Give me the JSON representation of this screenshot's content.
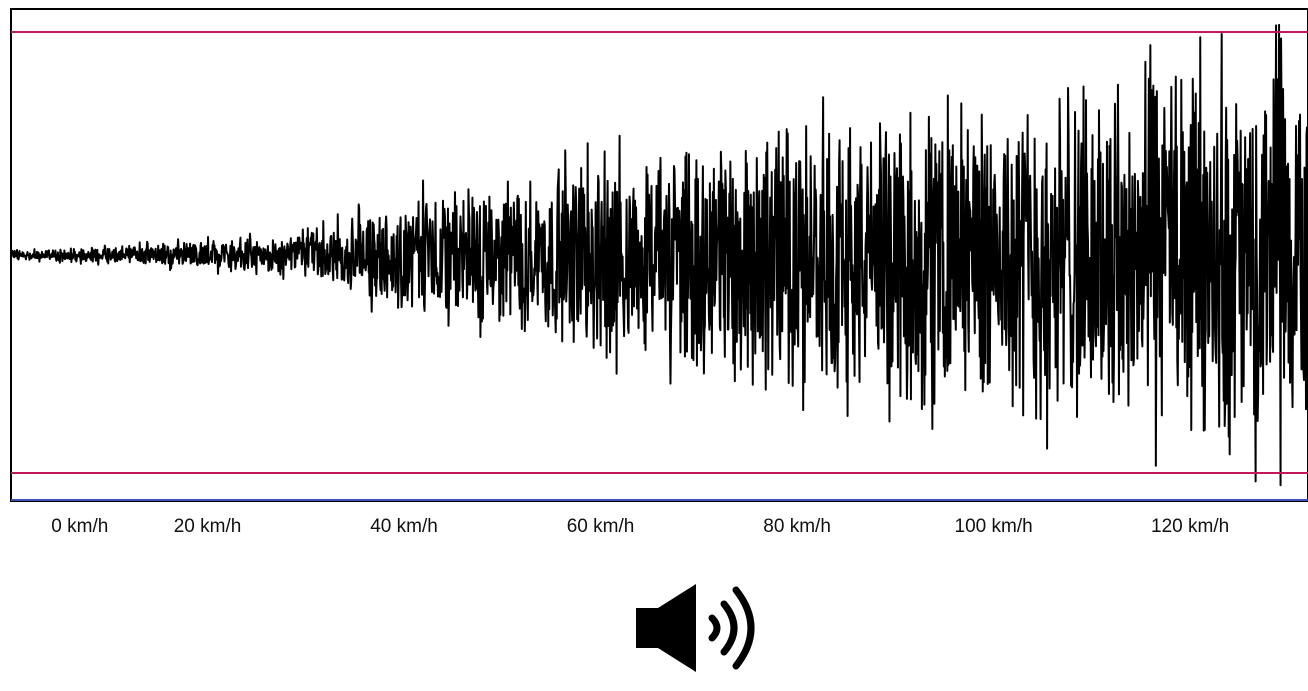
{
  "chart_data": {
    "type": "line",
    "title": "",
    "xlabel": "",
    "ylabel": "",
    "x_unit": "km/h",
    "xlim": [
      0,
      132
    ],
    "ylim": [
      -1.0,
      1.0
    ],
    "grid": false,
    "x_ticks": [
      {
        "value": 0,
        "label": "0 km/h"
      },
      {
        "value": 20,
        "label": "20 km/h"
      },
      {
        "value": 40,
        "label": "40 km/h"
      },
      {
        "value": 60,
        "label": "60 km/h"
      },
      {
        "value": 80,
        "label": "80 km/h"
      },
      {
        "value": 100,
        "label": "100 km/h"
      },
      {
        "value": 120,
        "label": "120 km/h"
      }
    ],
    "threshold_lines": [
      {
        "value": 0.91,
        "color": "#c2185b"
      },
      {
        "value": -0.89,
        "color": "#c2185b"
      }
    ],
    "baseline_color": "#3f51b5",
    "series": [
      {
        "color": "#000000",
        "envelope_x": [
          0,
          10,
          20,
          30,
          40,
          50,
          60,
          70,
          80,
          90,
          100,
          110,
          120,
          130,
          132
        ],
        "envelope_amplitude": [
          0.02,
          0.04,
          0.07,
          0.1,
          0.28,
          0.33,
          0.45,
          0.52,
          0.6,
          0.65,
          0.72,
          0.78,
          0.84,
          0.9,
          0.92
        ]
      }
    ]
  },
  "audio": {
    "icon": "speaker-volume-icon"
  }
}
